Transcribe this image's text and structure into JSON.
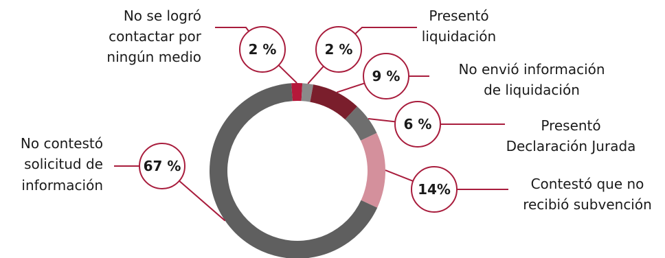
{
  "chart_data": {
    "type": "pie",
    "donut": true,
    "slices": [
      {
        "label": "No se logró contactar por ningún medio",
        "value": 2,
        "display": "2 %",
        "color": "#b5183a"
      },
      {
        "label": "Presentó liquidación",
        "value": 2,
        "display": "2 %",
        "color": "#8a8a8a"
      },
      {
        "label": "No envió información de liquidación",
        "value": 9,
        "display": "9 %",
        "color": "#7a1e2c"
      },
      {
        "label": "Presentó Declaración Jurada",
        "value": 6,
        "display": "6 %",
        "color": "#6e6e6e"
      },
      {
        "label": "Contestó que no recibió subvención",
        "value": 14,
        "display": "14%",
        "color": "#d4909c"
      },
      {
        "label": "No contestó solicitud de información",
        "value": 67,
        "display": "67 %",
        "color": "#5f5f5f"
      }
    ],
    "leader_color": "#a81c3c"
  },
  "labels": {
    "s0": [
      "No se logró",
      "contactar por",
      "ningún medio"
    ],
    "s1": [
      "Presentó",
      "liquidación"
    ],
    "s2": [
      "No envió información",
      "de liquidación"
    ],
    "s3": [
      "Presentó",
      "Declaración Jurada"
    ],
    "s4": [
      "Contestó que no",
      "recibió subvención"
    ],
    "s5": [
      "No contestó",
      "solicitud de",
      "información"
    ]
  }
}
